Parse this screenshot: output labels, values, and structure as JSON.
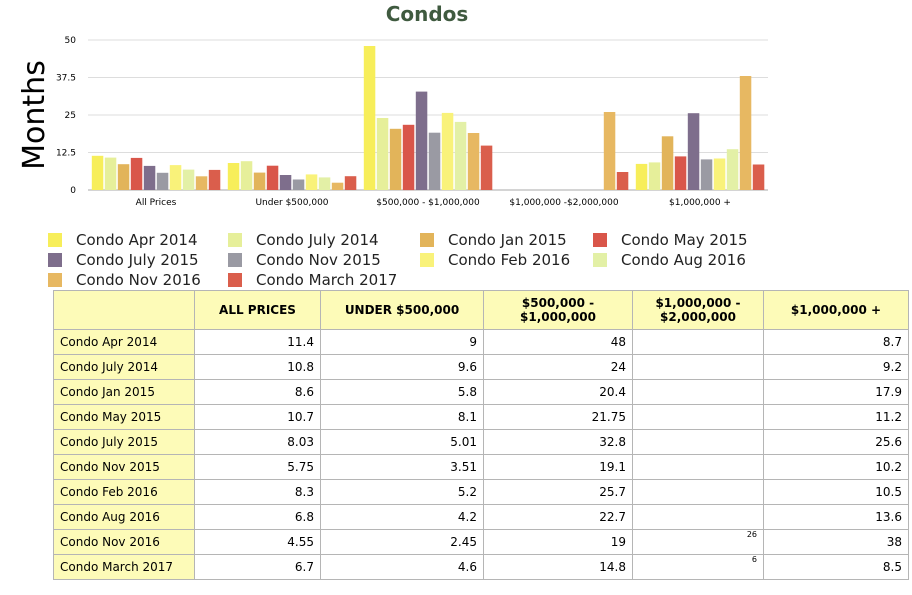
{
  "chart_data": {
    "type": "bar",
    "title": "Condos",
    "ylabel": "Months",
    "xlabel": "",
    "ylim": [
      0,
      50
    ],
    "yticks": [
      "0",
      "12.5",
      "25",
      "37.5",
      "50"
    ],
    "grid": true,
    "legend_position": "bottom",
    "categories": [
      "All Prices",
      "Under $500,000",
      "$500,000 - $1,000,000",
      "$1,000,000 -$2,000,000",
      "$1,000,000 +"
    ],
    "series": [
      {
        "name": "Condo Apr 2014",
        "color": "#f7ee5a",
        "values": [
          11.4,
          9,
          48,
          null,
          8.7
        ]
      },
      {
        "name": "Condo July 2014",
        "color": "#e6ef9a",
        "values": [
          10.8,
          9.6,
          24,
          null,
          9.2
        ]
      },
      {
        "name": "Condo Jan 2015",
        "color": "#e2b45a",
        "values": [
          8.6,
          5.8,
          20.4,
          null,
          17.9
        ]
      },
      {
        "name": "Condo May 2015",
        "color": "#d9564a",
        "values": [
          10.7,
          8.1,
          21.75,
          null,
          11.2
        ]
      },
      {
        "name": "Condo July 2015",
        "color": "#7e6e8c",
        "values": [
          8.03,
          5.01,
          32.8,
          null,
          25.6
        ]
      },
      {
        "name": "Condo Nov 2015",
        "color": "#9a9aa3",
        "values": [
          5.75,
          3.51,
          19.1,
          null,
          10.2
        ]
      },
      {
        "name": "Condo Feb 2016",
        "color": "#f9f27a",
        "values": [
          8.3,
          5.2,
          25.7,
          null,
          10.5
        ]
      },
      {
        "name": "Condo Aug 2016",
        "color": "#e3f0a6",
        "values": [
          6.8,
          4.2,
          22.7,
          null,
          13.6
        ]
      },
      {
        "name": "Condo Nov 2016",
        "color": "#e7b862",
        "values": [
          4.55,
          2.45,
          19,
          26,
          38
        ]
      },
      {
        "name": "Condo March 2017",
        "color": "#da5e4c",
        "values": [
          6.7,
          4.6,
          14.8,
          6,
          8.5
        ]
      }
    ]
  },
  "table": {
    "headers": [
      "ALL PRICES",
      "UNDER $500,000",
      "$500,000 - $1,000,000",
      "$1,000,000 - $2,000,000",
      "$1,000,000 +"
    ],
    "rows": [
      {
        "label": "Condo Apr 2014",
        "cells": [
          "11.4",
          "9",
          "48",
          "",
          "8.7"
        ]
      },
      {
        "label": "Condo July 2014",
        "cells": [
          "10.8",
          "9.6",
          "24",
          "",
          "9.2"
        ]
      },
      {
        "label": "Condo Jan 2015",
        "cells": [
          "8.6",
          "5.8",
          "20.4",
          "",
          "17.9"
        ]
      },
      {
        "label": "Condo May 2015",
        "cells": [
          "10.7",
          "8.1",
          "21.75",
          "",
          "11.2"
        ]
      },
      {
        "label": "Condo July 2015",
        "cells": [
          "8.03",
          "5.01",
          "32.8",
          "",
          "25.6"
        ]
      },
      {
        "label": "Condo Nov 2015",
        "cells": [
          "5.75",
          "3.51",
          "19.1",
          "",
          "10.2"
        ]
      },
      {
        "label": "Condo Feb 2016",
        "cells": [
          "8.3",
          "5.2",
          "25.7",
          "",
          "10.5"
        ]
      },
      {
        "label": "Condo Aug 2016",
        "cells": [
          "6.8",
          "4.2",
          "22.7",
          "",
          "13.6"
        ]
      },
      {
        "label": "Condo Nov 2016",
        "cells": [
          "4.55",
          "2.45",
          "19",
          "26",
          "38"
        ]
      },
      {
        "label": "Condo March 2017",
        "cells": [
          "6.7",
          "4.6",
          "14.8",
          "6",
          "8.5"
        ]
      }
    ]
  }
}
